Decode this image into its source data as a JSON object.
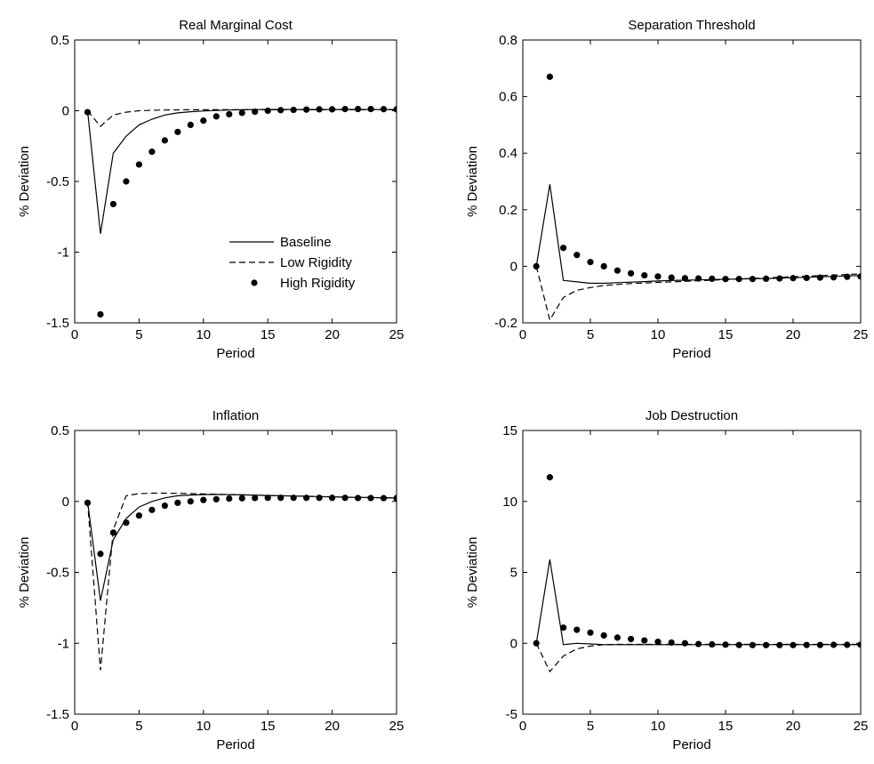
{
  "figure": {
    "xlabel": "Period",
    "ylabel": "% Deviation",
    "legend": {
      "location": "bottom-right of first panel",
      "entries": [
        {
          "label": "Baseline",
          "style": "solid-line"
        },
        {
          "label": "Low Rigidity",
          "style": "dashed-line"
        },
        {
          "label": "High Rigidity",
          "style": "dot-marker"
        }
      ]
    }
  },
  "chart_data": [
    {
      "type": "line",
      "title": "Real Marginal Cost",
      "xlabel": "Period",
      "ylabel": "% Deviation",
      "xlim": [
        0,
        25
      ],
      "ylim": [
        -1.5,
        0.5
      ],
      "xticks": [
        "0",
        "5",
        "10",
        "15",
        "20",
        "25"
      ],
      "yticks": [
        "-1.5",
        "-1",
        "-0.5",
        "0",
        "0.5"
      ],
      "x": [
        1,
        2,
        3,
        4,
        5,
        6,
        7,
        8,
        9,
        10,
        11,
        12,
        13,
        14,
        15,
        16,
        17,
        18,
        19,
        20,
        21,
        22,
        23,
        24,
        25
      ],
      "series": [
        {
          "name": "Baseline",
          "style": "solid",
          "values": [
            0,
            -0.87,
            -0.3,
            -0.18,
            -0.1,
            -0.06,
            -0.03,
            -0.015,
            -0.007,
            -0.002,
            0.002,
            0.005,
            0.007,
            0.008,
            0.009,
            0.009,
            0.009,
            0.009,
            0.009,
            0.009,
            0.009,
            0.009,
            0.008,
            0.008,
            0.008
          ]
        },
        {
          "name": "Low Rigidity",
          "style": "dashed",
          "values": [
            0,
            -0.11,
            -0.03,
            -0.01,
            0,
            0.003,
            0.005,
            0.006,
            0.007,
            0.007,
            0.007,
            0.007,
            0.007,
            0.007,
            0.007,
            0.007,
            0.007,
            0.007,
            0.007,
            0.007,
            0.007,
            0.007,
            0.007,
            0.007,
            0.007
          ]
        },
        {
          "name": "High Rigidity",
          "style": "dots",
          "values": [
            -0.01,
            -1.44,
            -0.66,
            -0.5,
            -0.38,
            -0.29,
            -0.21,
            -0.15,
            -0.1,
            -0.07,
            -0.04,
            -0.025,
            -0.015,
            -0.007,
            0,
            0.004,
            0.006,
            0.008,
            0.01,
            0.01,
            0.012,
            0.012,
            0.012,
            0.011,
            0.01
          ]
        }
      ]
    },
    {
      "type": "line",
      "title": "Separation Threshold",
      "xlabel": "Period",
      "ylabel": "% Deviation",
      "xlim": [
        0,
        25
      ],
      "ylim": [
        -0.2,
        0.8
      ],
      "xticks": [
        "0",
        "5",
        "10",
        "15",
        "20",
        "25"
      ],
      "yticks": [
        "-0.2",
        "0",
        "0.2",
        "0.4",
        "0.6",
        "0.8"
      ],
      "x": [
        1,
        2,
        3,
        4,
        5,
        6,
        7,
        8,
        9,
        10,
        11,
        12,
        13,
        14,
        15,
        16,
        17,
        18,
        19,
        20,
        21,
        22,
        23,
        24,
        25
      ],
      "series": [
        {
          "name": "Baseline",
          "style": "solid",
          "values": [
            0,
            0.29,
            -0.05,
            -0.055,
            -0.06,
            -0.06,
            -0.058,
            -0.056,
            -0.054,
            -0.052,
            -0.05,
            -0.049,
            -0.048,
            -0.047,
            -0.046,
            -0.045,
            -0.044,
            -0.043,
            -0.042,
            -0.04,
            -0.039,
            -0.037,
            -0.036,
            -0.034,
            -0.033
          ]
        },
        {
          "name": "Low Rigidity",
          "style": "dashed",
          "values": [
            0,
            -0.19,
            -0.11,
            -0.085,
            -0.075,
            -0.068,
            -0.064,
            -0.061,
            -0.059,
            -0.057,
            -0.055,
            -0.053,
            -0.051,
            -0.049,
            -0.047,
            -0.045,
            -0.043,
            -0.041,
            -0.039,
            -0.037,
            -0.035,
            -0.033,
            -0.031,
            -0.029,
            -0.027
          ]
        },
        {
          "name": "High Rigidity",
          "style": "dots",
          "values": [
            0,
            0.67,
            0.065,
            0.04,
            0.015,
            0,
            -0.015,
            -0.025,
            -0.032,
            -0.036,
            -0.04,
            -0.042,
            -0.043,
            -0.044,
            -0.045,
            -0.045,
            -0.045,
            -0.044,
            -0.043,
            -0.042,
            -0.041,
            -0.04,
            -0.039,
            -0.037,
            -0.036
          ]
        }
      ]
    },
    {
      "type": "line",
      "title": "Inflation",
      "xlabel": "Period",
      "ylabel": "% Deviation",
      "xlim": [
        0,
        25
      ],
      "ylim": [
        -1.5,
        0.5
      ],
      "xticks": [
        "0",
        "5",
        "10",
        "15",
        "20",
        "25"
      ],
      "yticks": [
        "-1.5",
        "-1",
        "-0.5",
        "0",
        "0.5"
      ],
      "x": [
        1,
        2,
        3,
        4,
        5,
        6,
        7,
        8,
        9,
        10,
        11,
        12,
        13,
        14,
        15,
        16,
        17,
        18,
        19,
        20,
        21,
        22,
        23,
        24,
        25
      ],
      "series": [
        {
          "name": "Baseline",
          "style": "solid",
          "values": [
            0,
            -0.7,
            -0.27,
            -0.12,
            -0.04,
            0,
            0.025,
            0.04,
            0.045,
            0.048,
            0.049,
            0.048,
            0.046,
            0.044,
            0.042,
            0.04,
            0.038,
            0.036,
            0.034,
            0.032,
            0.03,
            0.028,
            0.027,
            0.025,
            0.024
          ]
        },
        {
          "name": "Low Rigidity",
          "style": "dashed",
          "values": [
            0,
            -1.19,
            -0.2,
            0.04,
            0.055,
            0.058,
            0.058,
            0.057,
            0.055,
            0.053,
            0.05,
            0.048,
            0.046,
            0.044,
            0.042,
            0.04,
            0.038,
            0.036,
            0.034,
            0.032,
            0.03,
            0.029,
            0.027,
            0.026,
            0.025
          ]
        },
        {
          "name": "High Rigidity",
          "style": "dots",
          "values": [
            -0.01,
            -0.37,
            -0.22,
            -0.15,
            -0.1,
            -0.06,
            -0.03,
            -0.01,
            0,
            0.01,
            0.015,
            0.02,
            0.022,
            0.024,
            0.025,
            0.025,
            0.025,
            0.025,
            0.025,
            0.025,
            0.025,
            0.024,
            0.024,
            0.023,
            0.023
          ]
        }
      ]
    },
    {
      "type": "line",
      "title": "Job Destruction",
      "xlabel": "Period",
      "ylabel": "% Deviation",
      "xlim": [
        0,
        25
      ],
      "ylim": [
        -5,
        15
      ],
      "xticks": [
        "0",
        "5",
        "10",
        "15",
        "20",
        "25"
      ],
      "yticks": [
        "-5",
        "0",
        "5",
        "10",
        "15"
      ],
      "x": [
        1,
        2,
        3,
        4,
        5,
        6,
        7,
        8,
        9,
        10,
        11,
        12,
        13,
        14,
        15,
        16,
        17,
        18,
        19,
        20,
        21,
        22,
        23,
        24,
        25
      ],
      "series": [
        {
          "name": "Baseline",
          "style": "solid",
          "values": [
            0,
            5.9,
            -0.1,
            0,
            -0.05,
            -0.1,
            -0.1,
            -0.1,
            -0.1,
            -0.1,
            -0.1,
            -0.1,
            -0.1,
            -0.1,
            -0.1,
            -0.1,
            -0.1,
            -0.1,
            -0.1,
            -0.1,
            -0.1,
            -0.1,
            -0.1,
            -0.1,
            -0.1
          ]
        },
        {
          "name": "Low Rigidity",
          "style": "dashed",
          "values": [
            0,
            -2.0,
            -0.9,
            -0.4,
            -0.2,
            -0.1,
            -0.08,
            -0.08,
            -0.08,
            -0.08,
            -0.08,
            -0.08,
            -0.08,
            -0.08,
            -0.08,
            -0.08,
            -0.08,
            -0.08,
            -0.08,
            -0.08,
            -0.08,
            -0.08,
            -0.08,
            -0.08,
            -0.08
          ]
        },
        {
          "name": "High Rigidity",
          "style": "dots",
          "values": [
            0,
            11.7,
            1.1,
            0.95,
            0.75,
            0.55,
            0.4,
            0.3,
            0.2,
            0.1,
            0.05,
            0,
            -0.05,
            -0.08,
            -0.1,
            -0.12,
            -0.13,
            -0.13,
            -0.13,
            -0.13,
            -0.12,
            -0.12,
            -0.11,
            -0.11,
            -0.1
          ]
        }
      ]
    }
  ]
}
